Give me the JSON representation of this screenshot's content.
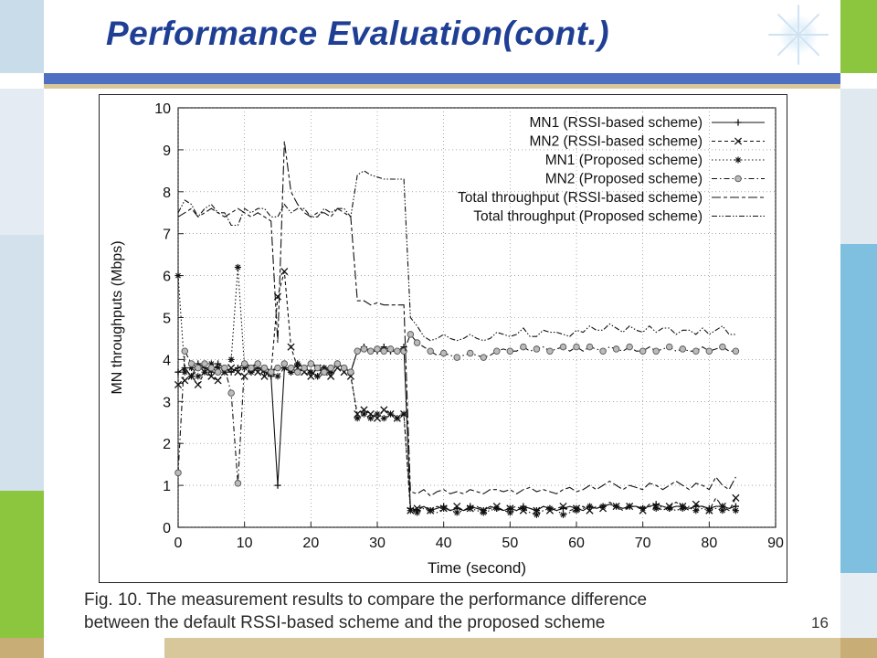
{
  "slide": {
    "title": "Performance Evaluation(cont.)",
    "caption_line1": "Fig. 10. The measurement results to compare the performance difference",
    "caption_line2": "between the default RSSI-based scheme and the proposed scheme",
    "page_number": "16"
  },
  "colors": {
    "title": "#1f3f95",
    "bar_blue": "#4f6fc3",
    "bar_tan": "#d8c79a",
    "frame_green": "#8cc63f",
    "frame_blue": "#7fbfe0",
    "frame_gray": "#dde6ef",
    "frame_tan": "#c8ae76"
  },
  "chart_data": {
    "type": "line",
    "xlabel": "Time (second)",
    "ylabel": "MN throughputs (Mbps)",
    "xlim": [
      0,
      90
    ],
    "ylim": [
      0,
      10
    ],
    "xticks": [
      "0",
      "10",
      "20",
      "30",
      "40",
      "50",
      "60",
      "70",
      "80",
      "90"
    ],
    "yticks": [
      "0",
      "1",
      "2",
      "3",
      "4",
      "5",
      "6",
      "7",
      "8",
      "9",
      "10"
    ],
    "grid": true,
    "legend_position": "top-right",
    "x": [
      0,
      1,
      2,
      3,
      4,
      5,
      6,
      7,
      8,
      9,
      10,
      11,
      12,
      13,
      14,
      15,
      16,
      17,
      18,
      19,
      20,
      21,
      22,
      23,
      24,
      25,
      26,
      27,
      28,
      29,
      30,
      31,
      32,
      33,
      34,
      35,
      36,
      37,
      38,
      39,
      40,
      41,
      42,
      43,
      44,
      45,
      46,
      47,
      48,
      49,
      50,
      51,
      52,
      53,
      54,
      55,
      56,
      57,
      58,
      59,
      60,
      61,
      62,
      63,
      64,
      65,
      66,
      67,
      68,
      69,
      70,
      71,
      72,
      73,
      74,
      75,
      76,
      77,
      78,
      79,
      80,
      81,
      82,
      83,
      84
    ],
    "series": [
      {
        "name": "MN1 (RSSI-based scheme)",
        "marker": "plus",
        "dash": "solid",
        "values": [
          3.7,
          3.8,
          3.6,
          3.9,
          3.8,
          3.7,
          3.9,
          3.8,
          3.7,
          3.8,
          3.9,
          3.7,
          3.8,
          3.7,
          3.6,
          1.0,
          3.8,
          3.7,
          3.9,
          3.8,
          3.7,
          3.6,
          3.8,
          3.7,
          3.9,
          3.8,
          3.7,
          4.2,
          4.3,
          4.2,
          4.2,
          4.3,
          4.2,
          4.2,
          4.3,
          0.45,
          0.4,
          0.5,
          0.4,
          0.45,
          0.5,
          0.4,
          0.45,
          0.4,
          0.5,
          0.45,
          0.4,
          0.5,
          0.45,
          0.4,
          0.45,
          0.4,
          0.5,
          0.45,
          0.4,
          0.5,
          0.45,
          0.4,
          0.45,
          0.5,
          0.45,
          0.4,
          0.5,
          0.45,
          0.5,
          0.55,
          0.5,
          0.45,
          0.5,
          0.5,
          0.45,
          0.5,
          0.55,
          0.5,
          0.45,
          0.5,
          0.5,
          0.45,
          0.5,
          0.5,
          0.45,
          0.5,
          0.5,
          0.45,
          0.5
        ]
      },
      {
        "name": "MN2 (RSSI-based scheme)",
        "marker": "cross",
        "dash": "dashed",
        "values": [
          3.4,
          3.5,
          3.6,
          3.4,
          3.7,
          3.6,
          3.5,
          3.7,
          3.8,
          3.7,
          3.6,
          3.8,
          3.7,
          3.6,
          3.7,
          5.5,
          6.1,
          4.3,
          3.8,
          3.7,
          3.6,
          3.8,
          3.7,
          3.6,
          3.8,
          3.7,
          3.6,
          2.7,
          2.8,
          2.7,
          2.6,
          2.8,
          2.7,
          2.6,
          2.7,
          0.4,
          0.45,
          0.5,
          0.4,
          0.5,
          0.45,
          0.4,
          0.5,
          0.4,
          0.45,
          0.5,
          0.4,
          0.45,
          0.5,
          0.4,
          0.45,
          0.5,
          0.4,
          0.45,
          0.4,
          0.5,
          0.4,
          0.45,
          0.5,
          0.4,
          0.45,
          0.5,
          0.4,
          0.5,
          0.45,
          0.6,
          0.5,
          0.4,
          0.5,
          0.5,
          0.4,
          0.55,
          0.5,
          0.4,
          0.5,
          0.6,
          0.5,
          0.4,
          0.55,
          0.5,
          0.4,
          0.7,
          0.5,
          0.4,
          0.7
        ]
      },
      {
        "name": "MN1 (Proposed scheme)",
        "marker": "star",
        "dash": "dotted",
        "values": [
          6.0,
          3.7,
          3.8,
          3.6,
          3.7,
          3.9,
          3.8,
          3.7,
          4.0,
          6.2,
          3.8,
          3.7,
          3.9,
          3.8,
          3.7,
          3.6,
          3.8,
          3.7,
          3.9,
          3.8,
          3.7,
          3.6,
          3.8,
          3.7,
          3.9,
          3.8,
          3.7,
          2.6,
          2.7,
          2.6,
          2.7,
          2.6,
          2.7,
          2.6,
          2.7,
          0.4,
          0.35,
          0.45,
          0.4,
          0.35,
          0.45,
          0.4,
          0.35,
          0.4,
          0.45,
          0.4,
          0.35,
          0.4,
          0.45,
          0.4,
          0.35,
          0.4,
          0.45,
          0.35,
          0.3,
          0.4,
          0.45,
          0.4,
          0.3,
          0.35,
          0.4,
          0.45,
          0.5,
          0.45,
          0.5,
          0.55,
          0.5,
          0.45,
          0.5,
          0.5,
          0.45,
          0.5,
          0.45,
          0.5,
          0.45,
          0.4,
          0.45,
          0.5,
          0.4,
          0.45,
          0.4,
          0.45,
          0.4,
          0.45,
          0.4
        ]
      },
      {
        "name": "MN2 (Proposed scheme)",
        "marker": "circle",
        "dash": "dashdot",
        "values": [
          1.3,
          4.2,
          3.9,
          3.8,
          3.9,
          3.8,
          3.7,
          3.8,
          3.2,
          1.05,
          3.9,
          3.8,
          3.9,
          3.8,
          3.7,
          3.8,
          3.9,
          3.8,
          3.7,
          3.8,
          3.9,
          3.8,
          3.7,
          3.8,
          3.9,
          3.8,
          3.7,
          4.2,
          4.25,
          4.2,
          4.25,
          4.2,
          4.25,
          4.2,
          4.2,
          4.6,
          4.4,
          4.3,
          4.2,
          4.1,
          4.15,
          4.1,
          4.05,
          4.1,
          4.15,
          4.1,
          4.05,
          4.1,
          4.2,
          4.25,
          4.2,
          4.2,
          4.3,
          4.2,
          4.25,
          4.3,
          4.2,
          4.25,
          4.3,
          4.2,
          4.3,
          4.2,
          4.3,
          4.25,
          4.2,
          4.3,
          4.25,
          4.2,
          4.3,
          4.2,
          4.2,
          4.3,
          4.2,
          4.25,
          4.3,
          4.2,
          4.25,
          4.2,
          4.2,
          4.3,
          4.2,
          4.25,
          4.3,
          4.2,
          4.2
        ]
      },
      {
        "name": "Total throughput (RSSI-based scheme)",
        "marker": "none",
        "dash": "longdash",
        "values": [
          7.4,
          7.5,
          7.6,
          7.4,
          7.5,
          7.6,
          7.5,
          7.4,
          7.5,
          7.6,
          7.5,
          7.4,
          7.5,
          7.4,
          7.3,
          4.4,
          9.2,
          8.0,
          7.7,
          7.5,
          7.4,
          7.5,
          7.5,
          7.4,
          7.6,
          7.5,
          7.4,
          5.4,
          5.4,
          5.3,
          5.35,
          5.3,
          5.3,
          5.3,
          5.3,
          0.85,
          0.8,
          0.9,
          0.75,
          0.85,
          0.9,
          0.8,
          0.85,
          0.8,
          0.9,
          0.85,
          0.8,
          0.9,
          0.9,
          0.85,
          0.9,
          0.8,
          0.9,
          0.95,
          0.85,
          0.9,
          0.85,
          0.8,
          0.9,
          0.95,
          0.85,
          0.9,
          1.0,
          0.9,
          1.0,
          1.1,
          1.0,
          0.9,
          1.0,
          0.95,
          0.9,
          1.05,
          1.0,
          0.9,
          1.0,
          1.1,
          1.0,
          0.9,
          1.05,
          1.0,
          0.9,
          1.2,
          1.0,
          0.9,
          1.2
        ]
      },
      {
        "name": "Total throughput (Proposed scheme)",
        "marker": "none",
        "dash": "dashdotdot",
        "values": [
          7.5,
          7.8,
          7.7,
          7.4,
          7.6,
          7.7,
          7.5,
          7.5,
          7.2,
          7.2,
          7.6,
          7.5,
          7.6,
          7.6,
          7.4,
          7.4,
          7.7,
          7.5,
          7.6,
          7.6,
          7.4,
          7.4,
          7.6,
          7.5,
          7.6,
          7.6,
          7.4,
          8.4,
          8.5,
          8.4,
          8.35,
          8.3,
          8.3,
          8.3,
          8.3,
          5.0,
          4.8,
          4.55,
          4.45,
          4.5,
          4.6,
          4.5,
          4.45,
          4.5,
          4.6,
          4.5,
          4.45,
          4.5,
          4.65,
          4.6,
          4.55,
          4.6,
          4.75,
          4.55,
          4.55,
          4.7,
          4.65,
          4.65,
          4.6,
          4.55,
          4.7,
          4.65,
          4.8,
          4.7,
          4.7,
          4.85,
          4.75,
          4.65,
          4.8,
          4.7,
          4.65,
          4.8,
          4.65,
          4.75,
          4.75,
          4.6,
          4.7,
          4.7,
          4.6,
          4.75,
          4.6,
          4.7,
          4.8,
          4.6,
          4.6
        ]
      }
    ]
  }
}
